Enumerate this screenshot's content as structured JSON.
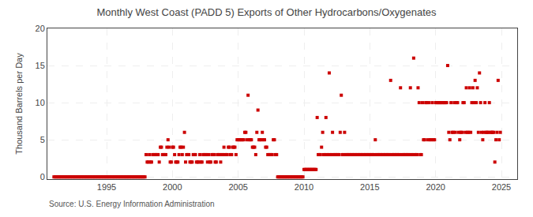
{
  "chart_data": {
    "type": "scatter",
    "title": "Monthly West Coast (PADD 5) Exports of Other Hydrocarbons/Oxygenates",
    "ylabel": "Thousand Barrels per Day",
    "annotations": [
      "Source: U.S. Energy Information Administration"
    ],
    "color": "#cc0000",
    "marker": "square",
    "grid": true,
    "xlim": [
      1990.5,
      2026.2
    ],
    "ylim": [
      -0.3,
      20
    ],
    "yticks": [
      0,
      5,
      10,
      15,
      20
    ],
    "xticks": [
      1995,
      2000,
      2005,
      2010,
      2015,
      2020,
      2025
    ],
    "x": [
      1991.0,
      1991.083,
      1991.167,
      1991.25,
      1991.333,
      1991.417,
      1991.5,
      1991.583,
      1991.667,
      1991.75,
      1991.833,
      1991.917,
      1992.0,
      1992.083,
      1992.167,
      1992.25,
      1992.333,
      1992.417,
      1992.5,
      1992.583,
      1992.667,
      1992.75,
      1992.833,
      1992.917,
      1993.0,
      1993.083,
      1993.167,
      1993.25,
      1993.333,
      1993.417,
      1993.5,
      1993.583,
      1993.667,
      1993.75,
      1993.833,
      1993.917,
      1994.0,
      1994.083,
      1994.167,
      1994.25,
      1994.333,
      1994.417,
      1994.5,
      1994.583,
      1994.667,
      1994.75,
      1994.833,
      1994.917,
      1995.0,
      1995.083,
      1995.167,
      1995.25,
      1995.333,
      1995.417,
      1995.5,
      1995.583,
      1995.667,
      1995.75,
      1995.833,
      1995.917,
      1996.0,
      1996.083,
      1996.167,
      1996.25,
      1996.333,
      1996.417,
      1996.5,
      1996.583,
      1996.667,
      1996.75,
      1996.833,
      1996.917,
      1997.0,
      1997.083,
      1997.167,
      1997.25,
      1997.333,
      1997.417,
      1997.5,
      1997.583,
      1997.667,
      1997.75,
      1997.833,
      1997.917,
      1998.0,
      1998.083,
      1998.167,
      1998.25,
      1998.333,
      1998.417,
      1998.5,
      1998.583,
      1998.667,
      1998.75,
      1998.833,
      1998.917,
      1999.0,
      1999.083,
      1999.167,
      1999.25,
      1999.333,
      1999.417,
      1999.5,
      1999.583,
      1999.667,
      1999.75,
      1999.833,
      1999.917,
      2000.0,
      2000.083,
      2000.167,
      2000.25,
      2000.333,
      2000.417,
      2000.5,
      2000.583,
      2000.667,
      2000.75,
      2000.833,
      2000.917,
      2001.0,
      2001.083,
      2001.167,
      2001.25,
      2001.333,
      2001.417,
      2001.5,
      2001.583,
      2001.667,
      2001.75,
      2001.833,
      2001.917,
      2002.0,
      2002.083,
      2002.167,
      2002.25,
      2002.333,
      2002.417,
      2002.5,
      2002.583,
      2002.667,
      2002.75,
      2002.833,
      2002.917,
      2003.0,
      2003.083,
      2003.167,
      2003.25,
      2003.333,
      2003.417,
      2003.5,
      2003.583,
      2003.667,
      2003.75,
      2003.833,
      2003.917,
      2004.0,
      2004.083,
      2004.167,
      2004.25,
      2004.333,
      2004.417,
      2004.5,
      2004.583,
      2004.667,
      2004.75,
      2004.833,
      2004.917,
      2005.0,
      2005.083,
      2005.167,
      2005.25,
      2005.333,
      2005.417,
      2005.5,
      2005.583,
      2005.667,
      2005.75,
      2005.833,
      2005.917,
      2006.0,
      2006.083,
      2006.167,
      2006.25,
      2006.333,
      2006.417,
      2006.5,
      2006.583,
      2006.667,
      2006.75,
      2006.833,
      2006.917,
      2007.0,
      2007.083,
      2007.167,
      2007.25,
      2007.333,
      2007.417,
      2007.5,
      2007.583,
      2007.667,
      2007.75,
      2007.833,
      2007.917,
      2008.0,
      2008.083,
      2008.167,
      2008.25,
      2008.333,
      2008.417,
      2008.5,
      2008.583,
      2008.667,
      2008.75,
      2008.833,
      2008.917,
      2009.0,
      2009.083,
      2009.167,
      2009.25,
      2009.333,
      2009.417,
      2009.5,
      2009.583,
      2009.667,
      2009.75,
      2009.833,
      2009.917,
      2010.0,
      2010.083,
      2010.167,
      2010.25,
      2010.333,
      2010.417,
      2010.5,
      2010.583,
      2010.667,
      2010.75,
      2010.833,
      2010.917,
      2011.0,
      2011.083,
      2011.167,
      2011.25,
      2011.333,
      2011.417,
      2011.5,
      2011.583,
      2011.667,
      2011.75,
      2011.833,
      2011.917,
      2012.0,
      2012.083,
      2012.167,
      2012.25,
      2012.333,
      2012.417,
      2012.5,
      2012.583,
      2012.667,
      2012.75,
      2012.833,
      2012.917,
      2013.0,
      2013.083,
      2013.167,
      2013.25,
      2013.333,
      2013.417,
      2013.5,
      2013.583,
      2013.667,
      2013.75,
      2013.833,
      2013.917,
      2014.0,
      2014.083,
      2014.167,
      2014.25,
      2014.333,
      2014.417,
      2014.5,
      2014.583,
      2014.667,
      2014.75,
      2014.833,
      2014.917,
      2015.0,
      2015.083,
      2015.167,
      2015.25,
      2015.333,
      2015.417,
      2015.5,
      2015.583,
      2015.667,
      2015.75,
      2015.833,
      2015.917,
      2016.0,
      2016.083,
      2016.167,
      2016.25,
      2016.333,
      2016.417,
      2016.5,
      2016.583,
      2016.667,
      2016.75,
      2016.833,
      2016.917,
      2017.0,
      2017.083,
      2017.167,
      2017.25,
      2017.333,
      2017.417,
      2017.5,
      2017.583,
      2017.667,
      2017.75,
      2017.833,
      2017.917,
      2018.0,
      2018.083,
      2018.167,
      2018.25,
      2018.333,
      2018.417,
      2018.5,
      2018.583,
      2018.667,
      2018.75,
      2018.833,
      2018.917,
      2019.0,
      2019.083,
      2019.167,
      2019.25,
      2019.333,
      2019.417,
      2019.5,
      2019.583,
      2019.667,
      2019.75,
      2019.833,
      2019.917,
      2020.0,
      2020.083,
      2020.167,
      2020.25,
      2020.333,
      2020.417,
      2020.5,
      2020.583,
      2020.667,
      2020.75,
      2020.833,
      2020.917,
      2021.0,
      2021.083,
      2021.167,
      2021.25,
      2021.333,
      2021.417,
      2021.5,
      2021.583,
      2021.667,
      2021.75,
      2021.833,
      2021.917,
      2022.0,
      2022.083,
      2022.167,
      2022.25,
      2022.333,
      2022.417,
      2022.5,
      2022.583,
      2022.667,
      2022.75,
      2022.833,
      2022.917,
      2023.0,
      2023.083,
      2023.167,
      2023.25,
      2023.333,
      2023.417,
      2023.5,
      2023.583,
      2023.667,
      2023.75,
      2023.833,
      2023.917,
      2024.0,
      2024.083,
      2024.167,
      2024.25,
      2024.333,
      2024.417,
      2024.5,
      2024.583,
      2024.667,
      2024.75,
      2024.833,
      2024.917
    ],
    "values": [
      0,
      0,
      0,
      0,
      0,
      0,
      0,
      0,
      0,
      0,
      0,
      0,
      0,
      0,
      0,
      0,
      0,
      0,
      0,
      0,
      0,
      0,
      0,
      0,
      0,
      0,
      0,
      0,
      0,
      0,
      0,
      0,
      0,
      0,
      0,
      0,
      0,
      0,
      0,
      0,
      0,
      0,
      0,
      0,
      0,
      0,
      0,
      0,
      0,
      0,
      0,
      0,
      0,
      0,
      0,
      0,
      0,
      0,
      0,
      0,
      0,
      0,
      0,
      0,
      0,
      0,
      0,
      0,
      0,
      0,
      0,
      0,
      0,
      0,
      0,
      0,
      0,
      0,
      0,
      0,
      0,
      0,
      0,
      0,
      3,
      2,
      2,
      3,
      2,
      2,
      3,
      3,
      3,
      3,
      3,
      3,
      2,
      4,
      4,
      3,
      3,
      3,
      3,
      4,
      5,
      4,
      2,
      2,
      4,
      4,
      3,
      2,
      2,
      2,
      3,
      4,
      4,
      3,
      4,
      6,
      2,
      3,
      3,
      3,
      2,
      2,
      2,
      3,
      3,
      3,
      2,
      2,
      2,
      3,
      2,
      2,
      3,
      3,
      3,
      3,
      2,
      3,
      2,
      2,
      3,
      3,
      3,
      2,
      2,
      3,
      3,
      3,
      2,
      3,
      3,
      4,
      3,
      3,
      3,
      4,
      4,
      3,
      3,
      4,
      4,
      4,
      3,
      5,
      5,
      5,
      5,
      5,
      5,
      5,
      6,
      6,
      5,
      11,
      5,
      5,
      5,
      4,
      4,
      4,
      3,
      6,
      9,
      5,
      5,
      5,
      6,
      5,
      5,
      4,
      4,
      3,
      3,
      3,
      3,
      3,
      5,
      5,
      3,
      3,
      0,
      0,
      0,
      0,
      0,
      0,
      0,
      0,
      0,
      0,
      0,
      0,
      0,
      0,
      0,
      0,
      0,
      0,
      0,
      0,
      0,
      0,
      0,
      0,
      1,
      1,
      1,
      1,
      1,
      1,
      1,
      1,
      1,
      1,
      1,
      1,
      8,
      3,
      3,
      3,
      4,
      6,
      3,
      3,
      8,
      3,
      3,
      14,
      3,
      3,
      6,
      3,
      3,
      3,
      3,
      3,
      3,
      6,
      11,
      3,
      3,
      6,
      3,
      3,
      3,
      3,
      3,
      3,
      3,
      3,
      3,
      3,
      3,
      3,
      3,
      3,
      3,
      3,
      3,
      3,
      3,
      3,
      3,
      3,
      3,
      3,
      3,
      3,
      3,
      5,
      3,
      3,
      3,
      3,
      3,
      3,
      3,
      3,
      3,
      3,
      3,
      3,
      3,
      13,
      3,
      3,
      3,
      3,
      3,
      3,
      3,
      3,
      12,
      3,
      3,
      3,
      3,
      3,
      3,
      3,
      3,
      12,
      3,
      3,
      16,
      3,
      3,
      3,
      12,
      10,
      3,
      3,
      10,
      5,
      5,
      10,
      10,
      5,
      10,
      5,
      5,
      10,
      5,
      5,
      10,
      10,
      10,
      10,
      10,
      10,
      10,
      10,
      10,
      10,
      10,
      15,
      6,
      5,
      10,
      6,
      6,
      10,
      6,
      10,
      10,
      6,
      5,
      6,
      6,
      10,
      10,
      6,
      12,
      6,
      6,
      12,
      6,
      10,
      12,
      10,
      13,
      10,
      12,
      6,
      14,
      10,
      6,
      5,
      6,
      10,
      6,
      6,
      6,
      10,
      6,
      6,
      6,
      6,
      2,
      5,
      6,
      13,
      5,
      6
    ]
  }
}
